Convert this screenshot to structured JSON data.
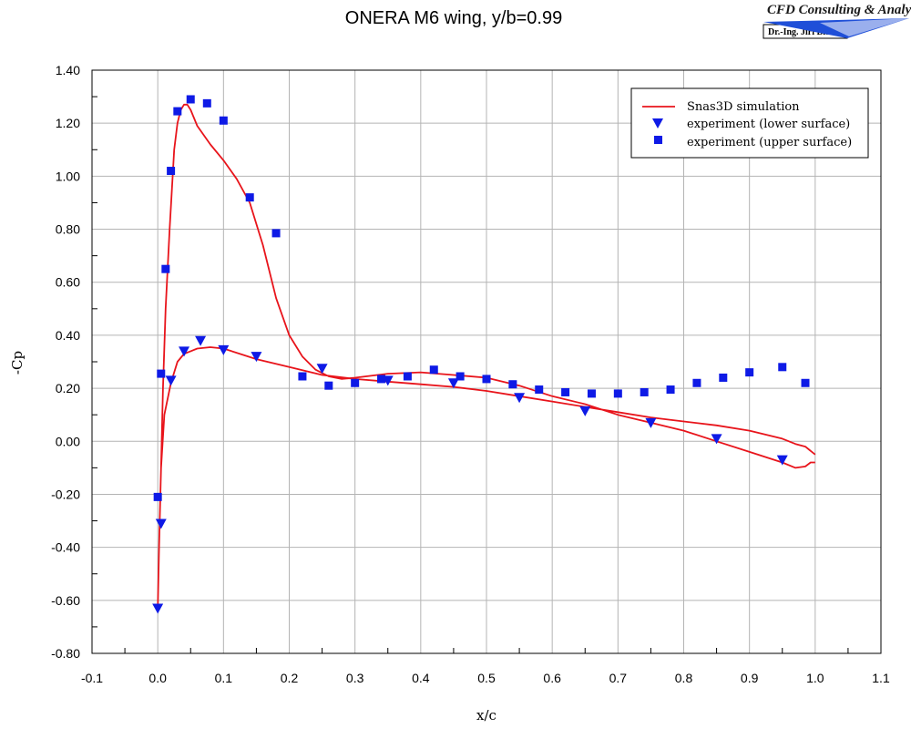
{
  "logo": {
    "title": "CFD Consulting & Analysis",
    "subtitle": "Dr.-Ing. Jiri Blazek",
    "accent_color": "#1f4fd8"
  },
  "chart_data": {
    "type": "line",
    "title": "ONERA M6 wing, y/b=0.99",
    "xlabel": "x/c",
    "ylabel": "-Cp",
    "xlim": [
      -0.1,
      1.1
    ],
    "ylim": [
      -0.8,
      1.4
    ],
    "grid": true,
    "legend_position": "top-right",
    "x_ticks": [
      "-0.1",
      "0.0",
      "0.1",
      "0.2",
      "0.3",
      "0.4",
      "0.5",
      "0.6",
      "0.7",
      "0.8",
      "0.9",
      "1.0",
      "1.1"
    ],
    "y_ticks": [
      "-0.80",
      "-0.60",
      "-0.40",
      "-0.20",
      "0.00",
      "0.20",
      "0.40",
      "0.60",
      "0.80",
      "1.00",
      "1.20",
      "1.40"
    ],
    "series": [
      {
        "name": "Snas3D simulation",
        "kind": "line",
        "color": "#e8141b",
        "x": [
          1.0,
          0.99,
          0.985,
          0.97,
          0.95,
          0.9,
          0.85,
          0.8,
          0.75,
          0.7,
          0.65,
          0.6,
          0.55,
          0.5,
          0.45,
          0.4,
          0.35,
          0.3,
          0.25,
          0.2,
          0.15,
          0.1,
          0.08,
          0.06,
          0.05,
          0.04,
          0.03,
          0.02,
          0.01,
          0.005,
          0.002,
          0.0,
          0.002,
          0.005,
          0.008,
          0.012,
          0.018,
          0.025,
          0.03,
          0.035,
          0.04,
          0.045,
          0.05,
          0.055,
          0.06,
          0.08,
          0.1,
          0.12,
          0.14,
          0.16,
          0.18,
          0.2,
          0.22,
          0.24,
          0.26,
          0.28,
          0.3,
          0.35,
          0.4,
          0.45,
          0.5,
          0.55,
          0.6,
          0.65,
          0.7,
          0.75,
          0.8,
          0.85,
          0.9,
          0.95,
          0.97,
          0.985,
          0.993,
          1.0
        ],
        "y": [
          -0.05,
          -0.03,
          -0.02,
          -0.01,
          0.01,
          0.04,
          0.06,
          0.075,
          0.09,
          0.11,
          0.13,
          0.15,
          0.17,
          0.19,
          0.205,
          0.215,
          0.225,
          0.235,
          0.25,
          0.28,
          0.31,
          0.35,
          0.355,
          0.35,
          0.34,
          0.33,
          0.3,
          0.22,
          0.1,
          -0.1,
          -0.4,
          -0.63,
          -0.4,
          -0.1,
          0.2,
          0.5,
          0.8,
          1.1,
          1.2,
          1.25,
          1.27,
          1.27,
          1.25,
          1.22,
          1.19,
          1.12,
          1.06,
          0.99,
          0.9,
          0.74,
          0.54,
          0.4,
          0.32,
          0.27,
          0.245,
          0.235,
          0.24,
          0.255,
          0.26,
          0.25,
          0.24,
          0.21,
          0.17,
          0.14,
          0.1,
          0.07,
          0.04,
          0.0,
          -0.04,
          -0.08,
          -0.1,
          -0.095,
          -0.08,
          -0.08
        ]
      },
      {
        "name": "experiment (lower surface)",
        "kind": "scatter",
        "marker": "triangle-down",
        "color": "#0e1ae6",
        "x": [
          0.0,
          0.005,
          0.02,
          0.04,
          0.065,
          0.1,
          0.15,
          0.25,
          0.35,
          0.45,
          0.55,
          0.65,
          0.75,
          0.85,
          0.95
        ],
        "y": [
          -0.63,
          -0.31,
          0.23,
          0.34,
          0.38,
          0.345,
          0.32,
          0.275,
          0.23,
          0.22,
          0.165,
          0.115,
          0.07,
          0.01,
          -0.07
        ]
      },
      {
        "name": "experiment (upper surface)",
        "kind": "scatter",
        "marker": "square",
        "color": "#0e1ae6",
        "x": [
          0.0,
          0.005,
          0.012,
          0.02,
          0.03,
          0.05,
          0.075,
          0.1,
          0.14,
          0.18,
          0.22,
          0.26,
          0.3,
          0.34,
          0.38,
          0.42,
          0.46,
          0.5,
          0.54,
          0.58,
          0.62,
          0.66,
          0.7,
          0.74,
          0.78,
          0.82,
          0.86,
          0.9,
          0.95,
          0.985
        ],
        "y": [
          -0.21,
          0.255,
          0.65,
          1.02,
          1.245,
          1.29,
          1.275,
          1.21,
          0.92,
          0.785,
          0.245,
          0.21,
          0.22,
          0.235,
          0.245,
          0.27,
          0.245,
          0.235,
          0.215,
          0.195,
          0.185,
          0.18,
          0.18,
          0.185,
          0.195,
          0.22,
          0.24,
          0.26,
          0.28,
          0.22
        ]
      }
    ]
  }
}
